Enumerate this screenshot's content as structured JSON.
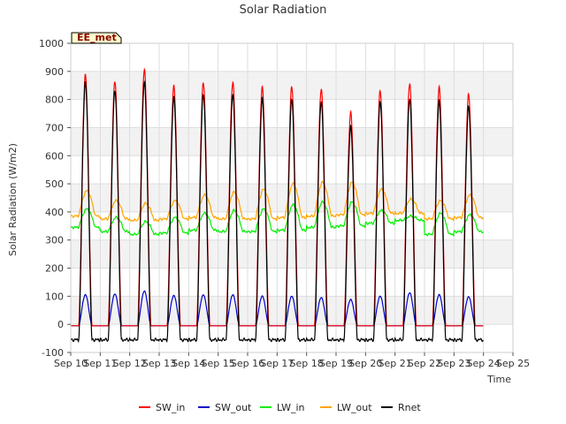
{
  "chart_data": {
    "type": "line",
    "title": "Solar Radiation",
    "xlabel": "Time",
    "ylabel": "Solar Radiation (W/m2)",
    "site_label": "EE_met",
    "ylim": [
      -100,
      1000
    ],
    "yticks": [
      -100,
      0,
      100,
      200,
      300,
      400,
      500,
      600,
      700,
      800,
      900,
      1000
    ],
    "xlim": [
      10,
      25
    ],
    "xticks": [
      {
        "day": 10,
        "label": "Sep 10"
      },
      {
        "day": 11,
        "label": "Sep 11"
      },
      {
        "day": 12,
        "label": "Sep 12"
      },
      {
        "day": 13,
        "label": "Sep 13"
      },
      {
        "day": 14,
        "label": "Sep 14"
      },
      {
        "day": 15,
        "label": "Sep 15"
      },
      {
        "day": 16,
        "label": "Sep 16"
      },
      {
        "day": 17,
        "label": "Sep 17"
      },
      {
        "day": 18,
        "label": "Sep 18"
      },
      {
        "day": 19,
        "label": "Sep 19"
      },
      {
        "day": 20,
        "label": "Sep 20"
      },
      {
        "day": 21,
        "label": "Sep 21"
      },
      {
        "day": 22,
        "label": "Sep 22"
      },
      {
        "day": 23,
        "label": "Sep 23"
      },
      {
        "day": 24,
        "label": "Sep 24"
      },
      {
        "day": 25,
        "label": "Sep 25"
      }
    ],
    "grid": true,
    "legend_position": "bottom",
    "days": [
      "Sep 10",
      "Sep 11",
      "Sep 12",
      "Sep 13",
      "Sep 14",
      "Sep 15",
      "Sep 16",
      "Sep 17",
      "Sep 18",
      "Sep 19",
      "Sep 20",
      "Sep 21",
      "Sep 22",
      "Sep 23"
    ],
    "series": [
      {
        "name": "SW_in",
        "color": "#ff0000",
        "night": -5,
        "daily_peak": [
          885,
          865,
          905,
          845,
          860,
          860,
          840,
          845,
          835,
          750,
          830,
          855,
          840,
          818
        ]
      },
      {
        "name": "SW_out",
        "color": "#0000cc",
        "night": -5,
        "daily_peak": [
          105,
          108,
          118,
          102,
          105,
          105,
          100,
          100,
          95,
          88,
          100,
          112,
          105,
          98
        ]
      },
      {
        "name": "LW_in",
        "color": "#00ee00",
        "night_level": [
          345,
          330,
          320,
          325,
          335,
          330,
          330,
          335,
          345,
          350,
          360,
          370,
          320,
          330
        ],
        "day_peak": [
          410,
          380,
          365,
          380,
          395,
          405,
          410,
          425,
          435,
          435,
          405,
          385,
          395,
          390
        ]
      },
      {
        "name": "LW_out",
        "color": "#ffa500",
        "night_level": [
          385,
          375,
          370,
          375,
          380,
          375,
          375,
          380,
          385,
          390,
          395,
          395,
          375,
          380
        ],
        "day_peak": [
          475,
          440,
          430,
          440,
          460,
          470,
          480,
          500,
          505,
          505,
          480,
          445,
          440,
          460
        ]
      },
      {
        "name": "Rnet",
        "color": "#000000",
        "night": -55,
        "daily_peak": [
          858,
          832,
          860,
          805,
          818,
          815,
          800,
          800,
          790,
          700,
          790,
          800,
          790,
          773
        ]
      }
    ]
  }
}
